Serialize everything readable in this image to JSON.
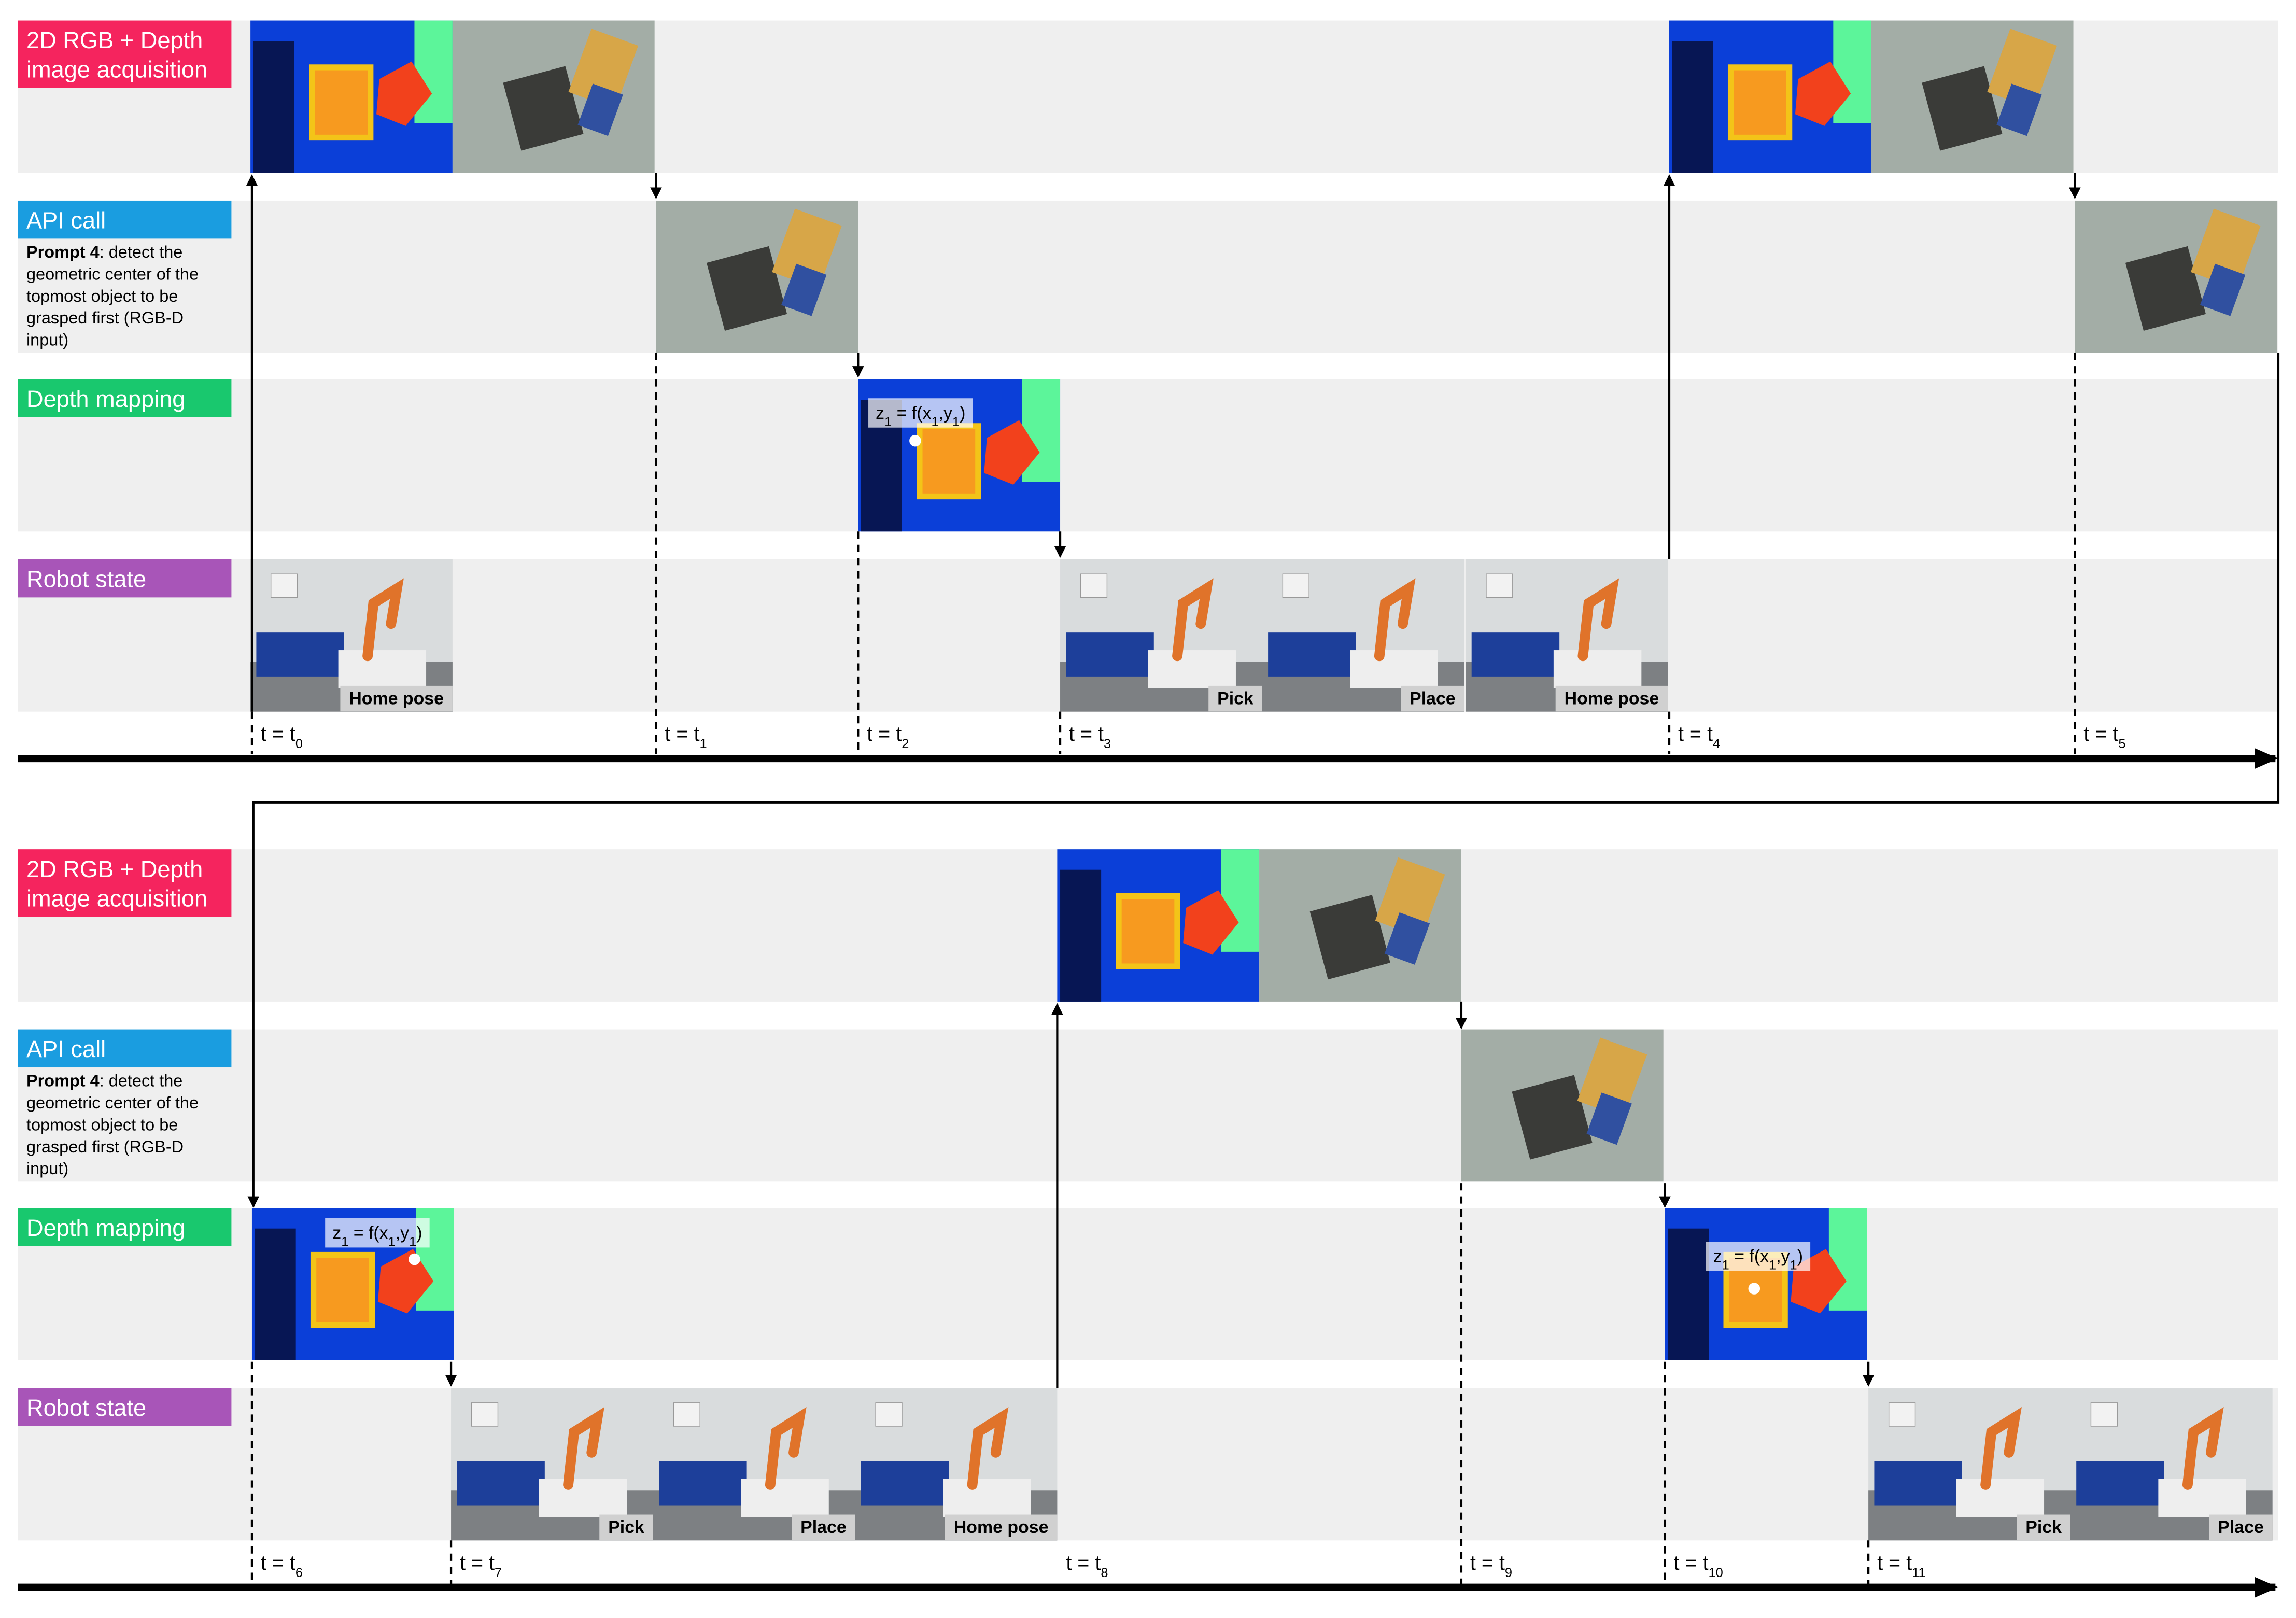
{
  "panels": [
    {
      "lanes": [
        {
          "label": [
            "2D RGB + Depth",
            "image acquisition"
          ]
        },
        {
          "label": [
            "API call"
          ],
          "prompt": {
            "bold": "Prompt 4",
            "lines": [
              ": detect the",
              "geometric center of the",
              "topmost object to be",
              "grasped first (RGB-D",
              "input)"
            ]
          }
        },
        {
          "label": [
            "Depth mapping"
          ]
        },
        {
          "label": [
            "Robot state"
          ]
        }
      ],
      "formulas": [
        [
          "z",
          "1",
          " = f(x",
          "1",
          ",y",
          "1",
          ")"
        ]
      ],
      "captions": [
        "Home pose",
        "Pick",
        "Place",
        "Home pose"
      ],
      "times": [
        [
          "t = t",
          "0"
        ],
        [
          "t = t",
          "1"
        ],
        [
          "t = t",
          "2"
        ],
        [
          "t = t",
          "3"
        ],
        [
          "t = t",
          "4"
        ],
        [
          "t = t",
          "5"
        ]
      ]
    },
    {
      "lanes": [
        {
          "label": [
            "2D RGB + Depth",
            "image acquisition"
          ]
        },
        {
          "label": [
            "API call"
          ],
          "prompt": {
            "bold": "Prompt 4",
            "lines": [
              ": detect the",
              "geometric center of the",
              "topmost object to be",
              "grasped first (RGB-D",
              "input)"
            ]
          }
        },
        {
          "label": [
            "Depth mapping"
          ]
        },
        {
          "label": [
            "Robot state"
          ]
        }
      ],
      "formulas": [
        [
          "z",
          "1",
          " = f(x",
          "1",
          ",y",
          "1",
          ")"
        ],
        [
          "z",
          "1",
          " = f(x",
          "1",
          ",y",
          "1",
          ")"
        ]
      ],
      "captions": [
        "Pick",
        "Place",
        "Home pose",
        "Pick",
        "Place"
      ],
      "times": [
        [
          "t = t",
          "6"
        ],
        [
          "t = t",
          "7"
        ],
        [
          "t = t",
          "8"
        ],
        [
          "t = t",
          "9"
        ],
        [
          "t = t",
          "10"
        ],
        [
          "t = t",
          "11"
        ]
      ]
    }
  ]
}
